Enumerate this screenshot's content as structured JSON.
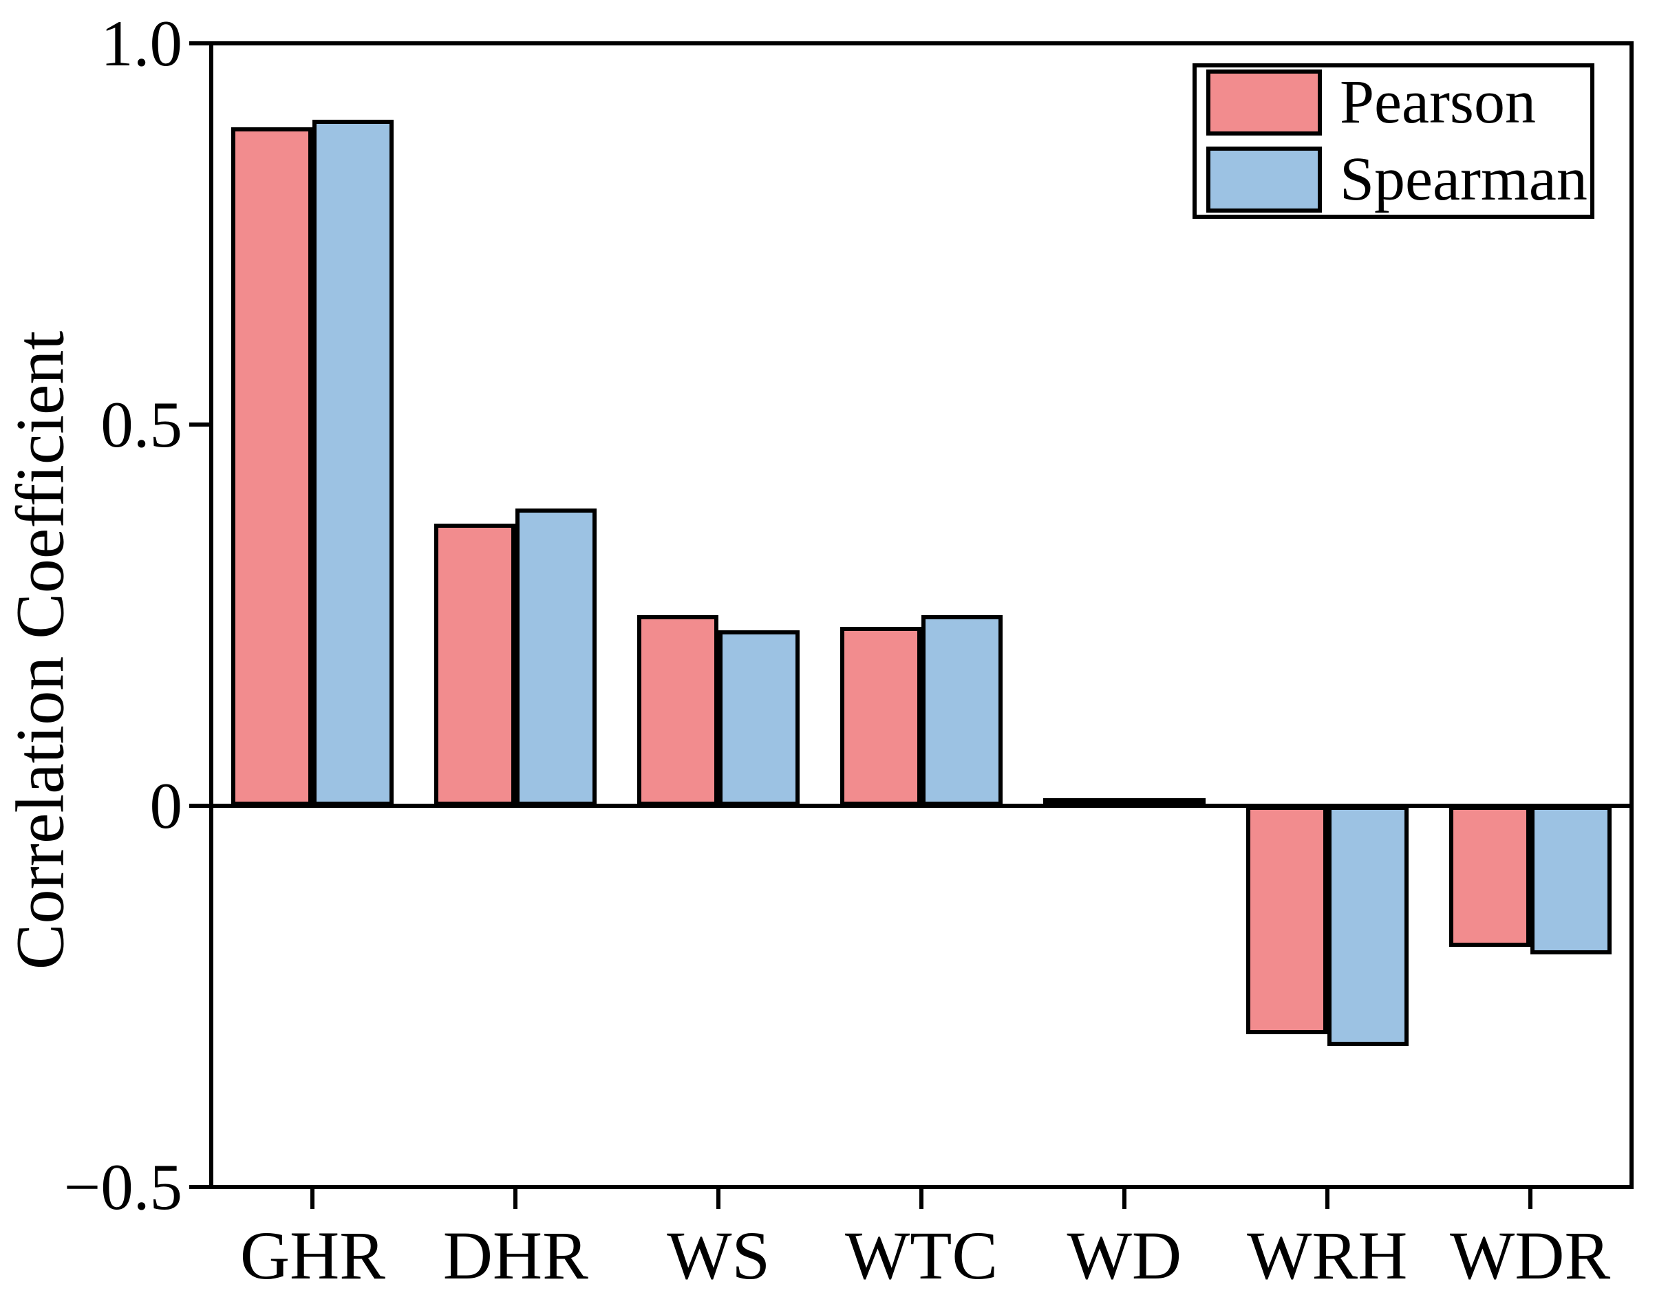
{
  "figure": {
    "background": "#ffffff",
    "axis_color": "#000000"
  },
  "chart_data": {
    "type": "bar",
    "title": "",
    "xlabel": "",
    "ylabel": "Correlation Coefficient",
    "categories": [
      "GHR",
      "DHR",
      "WS",
      "WTC",
      "WD",
      "WRH",
      "WDR"
    ],
    "series": [
      {
        "name": "Pearson",
        "color": "#F28C8E",
        "values": [
          0.89,
          0.37,
          0.25,
          0.235,
          0.01,
          -0.3,
          -0.185
        ]
      },
      {
        "name": "Spearman",
        "color": "#9CC2E3",
        "values": [
          0.9,
          0.39,
          0.23,
          0.25,
          0.01,
          -0.315,
          -0.195
        ]
      }
    ],
    "ylim": [
      -0.5,
      1.0
    ],
    "yticks": [
      {
        "value": 1.0,
        "label": "1.0"
      },
      {
        "value": 0.5,
        "label": "0.5"
      },
      {
        "value": 0.0,
        "label": "0"
      },
      {
        "value": -0.5,
        "label": "−0.5"
      }
    ],
    "grid": false,
    "legend_position": "top-right",
    "bar_edge_color": "#000000"
  },
  "legend": {
    "items": [
      {
        "label": "Pearson",
        "color": "#F28C8E"
      },
      {
        "label": "Spearman",
        "color": "#9CC2E3"
      }
    ]
  }
}
